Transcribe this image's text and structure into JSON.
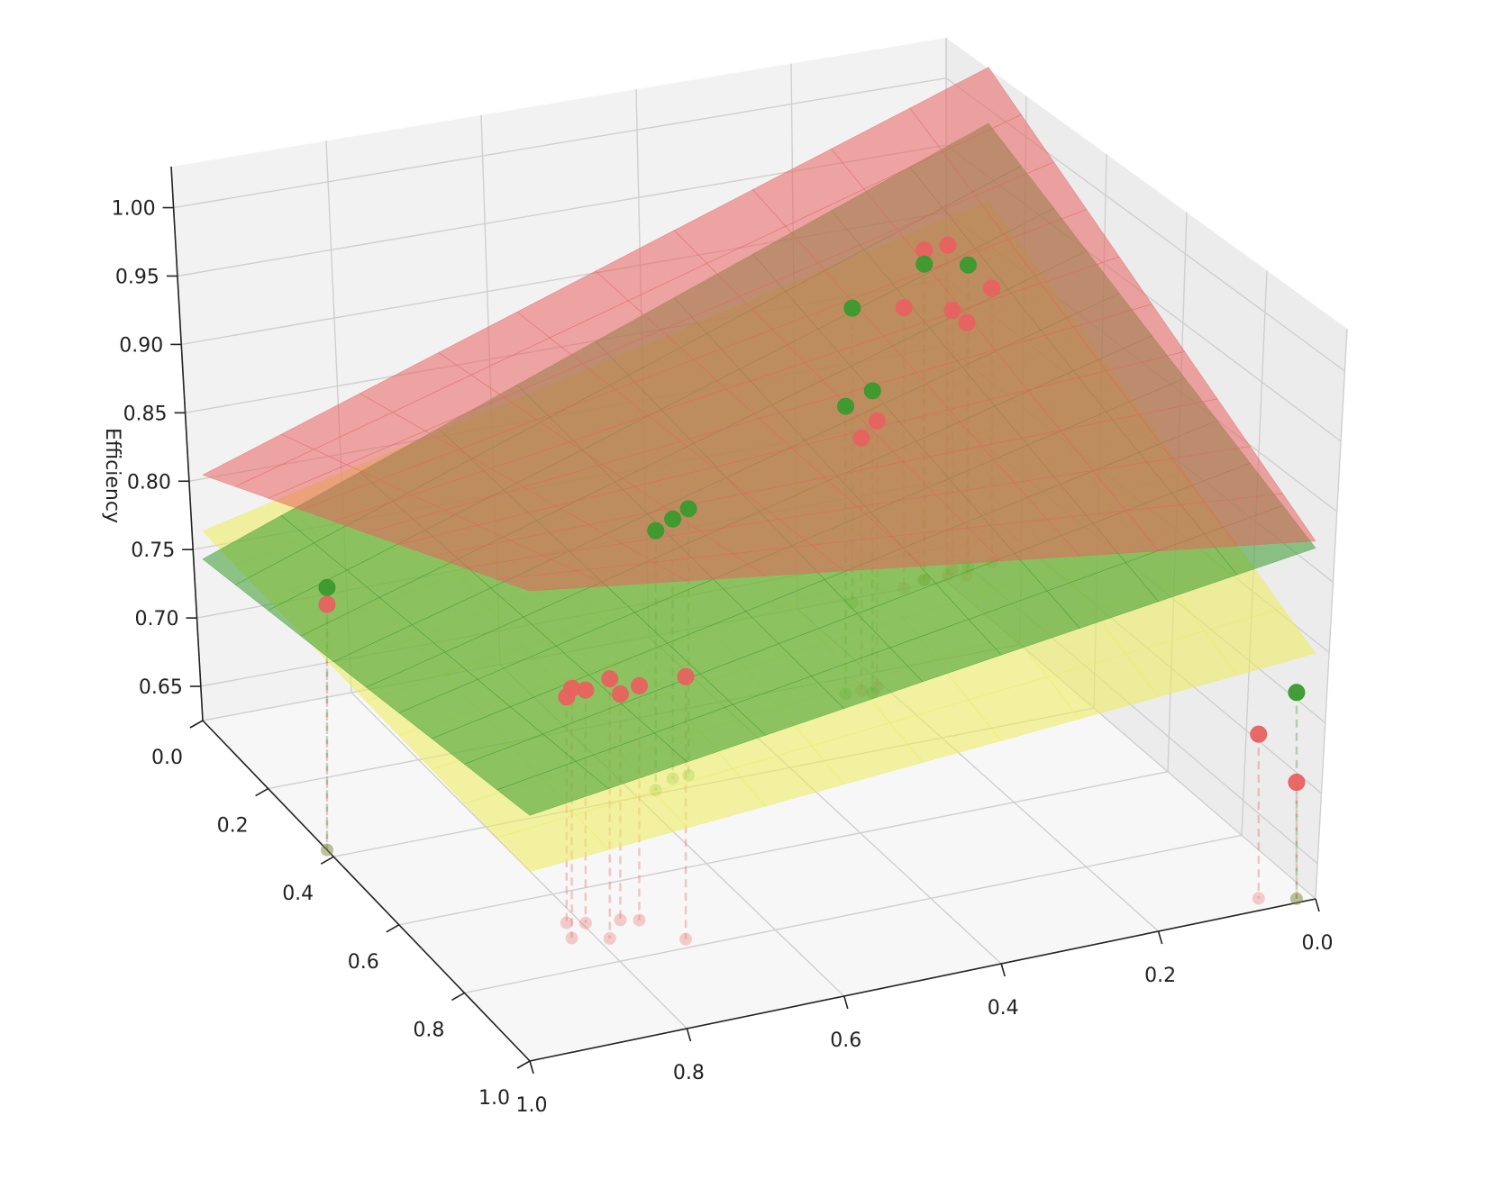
{
  "chart_data": {
    "type": "surface3d",
    "title": "",
    "zlabel": "Efficiency",
    "xlim": [
      0,
      1
    ],
    "ylim": [
      0,
      1
    ],
    "zlim": [
      0.625,
      1.03
    ],
    "x_ticks": [
      "0.0",
      "0.2",
      "0.4",
      "0.6",
      "0.8",
      "1.0"
    ],
    "y_ticks": [
      "0.0",
      "0.2",
      "0.4",
      "0.6",
      "0.8",
      "1.0"
    ],
    "z_ticks": [
      "0.65",
      "0.70",
      "0.75",
      "0.80",
      "0.85",
      "0.90",
      "0.95",
      "1.00"
    ],
    "grid": true,
    "series": [
      {
        "color": "#e8625f",
        "surface_corners": {
          "x0_y0": 0.88,
          "x0_y1": 0.975,
          "x1_y0": 0.96,
          "x1_y1": 0.8
        },
        "points": [
          {
            "x": 0.0,
            "y": 0.99,
            "z": 0.82
          },
          {
            "x": 0.04,
            "y": 0.97,
            "z": 0.805
          },
          {
            "x": 0.05,
            "y": 0.99,
            "z": 0.81
          },
          {
            "x": 0.06,
            "y": 0.98,
            "z": 0.86
          },
          {
            "x": 0.09,
            "y": 0.98,
            "z": 0.86
          },
          {
            "x": 0.12,
            "y": 0.97,
            "z": 0.825
          },
          {
            "x": 0.25,
            "y": 0.74,
            "z": 0.815
          },
          {
            "x": 0.27,
            "y": 0.74,
            "z": 0.805
          },
          {
            "x": 0.06,
            "y": 0.03,
            "z": 0.742
          },
          {
            "x": 0.02,
            "y": 0.01,
            "z": 0.708
          },
          {
            "x": 0.74,
            "y": 0.29,
            "z": 0.792
          },
          {
            "x": 0.76,
            "y": 0.3,
            "z": 0.786
          },
          {
            "x": 0.8,
            "y": 0.31,
            "z": 0.791
          },
          {
            "x": 0.82,
            "y": 0.32,
            "z": 0.786
          },
          {
            "x": 0.83,
            "y": 0.28,
            "z": 0.803
          },
          {
            "x": 0.79,
            "y": 0.26,
            "z": 0.81
          },
          {
            "x": 0.71,
            "y": 0.22,
            "z": 0.812
          },
          {
            "x": 1.0,
            "y": 0.62,
            "z": 0.8
          }
        ]
      },
      {
        "color": "#3a9a2e",
        "surface_corners": {
          "x0_y0": 0.875,
          "x0_y1": 0.935,
          "x1_y0": 0.8,
          "x1_y1": 0.74
        },
        "points": [
          {
            "x": 0.09,
            "y": 0.98,
            "z": 0.85
          },
          {
            "x": 0.03,
            "y": 0.99,
            "z": 0.84
          },
          {
            "x": 0.19,
            "y": 0.96,
            "z": 0.835
          },
          {
            "x": 0.29,
            "y": 0.74,
            "z": 0.83
          },
          {
            "x": 0.26,
            "y": 0.73,
            "z": 0.84
          },
          {
            "x": 0.54,
            "y": 0.62,
            "z": 0.815
          },
          {
            "x": 0.56,
            "y": 0.62,
            "z": 0.81
          },
          {
            "x": 0.59,
            "y": 0.6,
            "z": 0.81
          },
          {
            "x": 1.0,
            "y": 0.62,
            "z": 0.812
          },
          {
            "x": 0.02,
            "y": 0.01,
            "z": 0.772
          }
        ]
      },
      {
        "color": "#eded5a",
        "surface_corners": {
          "x0_y0": 0.8,
          "x0_y1": 0.88,
          "x1_y0": 0.76,
          "x1_y1": 0.76
        },
        "points": []
      }
    ]
  }
}
